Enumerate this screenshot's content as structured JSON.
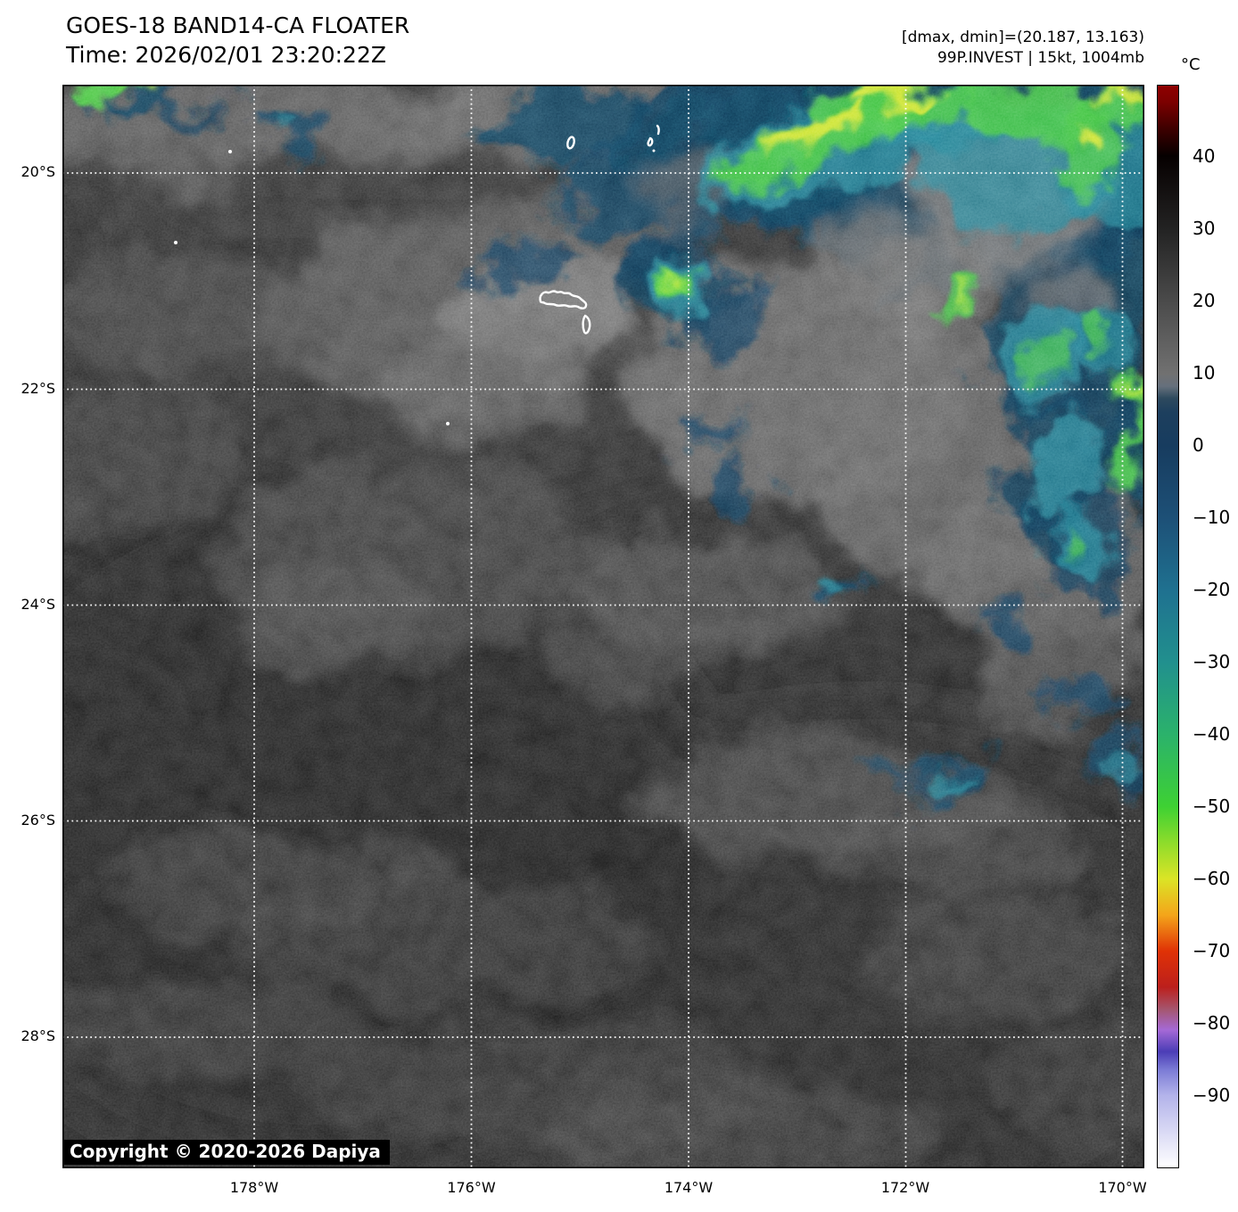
{
  "header": {
    "product_title": "GOES-18 BAND14-CA FLOATER",
    "timestamp": "Time: 2026/02/01 23:20:22Z",
    "dmax_dmin": "[dmax, dmin]=(20.187, 13.163)",
    "storm_info": "99P.INVEST | 15kt, 1004mb"
  },
  "map": {
    "copyright": "Copyright © 2020-2026 Dapiya"
  },
  "axes": {
    "lat_labels": [
      "20°S",
      "22°S",
      "24°S",
      "26°S",
      "28°S"
    ],
    "lon_labels": [
      "178°W",
      "176°W",
      "174°W",
      "172°W",
      "170°W"
    ]
  },
  "colorbar": {
    "unit": "°C",
    "tick_labels": [
      "40",
      "30",
      "20",
      "10",
      "0",
      "−10",
      "−20",
      "−30",
      "−40",
      "−50",
      "−60",
      "−70",
      "−80",
      "−90"
    ],
    "range_c": [
      50,
      -100
    ],
    "gradient": [
      {
        "p": 0,
        "c": "#8f0000"
      },
      {
        "p": 1.5,
        "c": "#7c0000"
      },
      {
        "p": 4,
        "c": "#3d0000"
      },
      {
        "p": 6.5,
        "c": "#060000"
      },
      {
        "p": 13.33,
        "c": "#232323"
      },
      {
        "p": 20,
        "c": "#4b4b4b"
      },
      {
        "p": 26.67,
        "c": "#717171"
      },
      {
        "p": 27.8,
        "c": "#66707c"
      },
      {
        "p": 28.9,
        "c": "#2e4a5e"
      },
      {
        "p": 30.2,
        "c": "#1d3f5e"
      },
      {
        "p": 33.33,
        "c": "#173c5f"
      },
      {
        "p": 40,
        "c": "#1d5077"
      },
      {
        "p": 46.67,
        "c": "#1f7190"
      },
      {
        "p": 53.33,
        "c": "#21908e"
      },
      {
        "p": 60,
        "c": "#2bb26b"
      },
      {
        "p": 66.67,
        "c": "#3ed133"
      },
      {
        "p": 70,
        "c": "#8edc2b"
      },
      {
        "p": 73.33,
        "c": "#dbe426"
      },
      {
        "p": 76.67,
        "c": "#f4a51a"
      },
      {
        "p": 80,
        "c": "#e03206"
      },
      {
        "p": 83.33,
        "c": "#bc1f1c"
      },
      {
        "p": 85.4,
        "c": "#a5566f"
      },
      {
        "p": 87.3,
        "c": "#a569d6"
      },
      {
        "p": 89.3,
        "c": "#4b3db6"
      },
      {
        "p": 91,
        "c": "#7c7cd6"
      },
      {
        "p": 93.33,
        "c": "#b3b3ea"
      },
      {
        "p": 100,
        "c": "#ffffff"
      }
    ]
  }
}
